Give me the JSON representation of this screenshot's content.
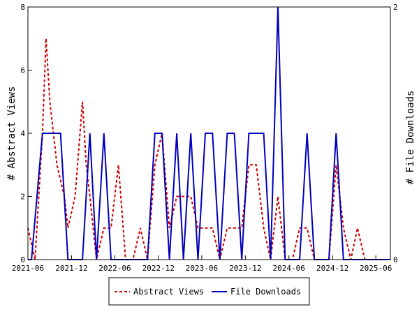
{
  "chart_data": {
    "type": "line",
    "ylabel_left": "# Abstract Views",
    "ylabel_right": "# File Downloads",
    "ylim_left": [
      0,
      8
    ],
    "ylim_right": [
      0,
      2
    ],
    "yticks_left": [
      "0",
      "2",
      "4",
      "6",
      "8"
    ],
    "yticks_right": [
      "0",
      "2"
    ],
    "x_tick_labels": [
      "2021-06",
      "2021-12",
      "2022-06",
      "2022-12",
      "2023-06",
      "2023-12",
      "2024-06",
      "2024-12",
      "2025-06"
    ],
    "x_tick_dates": [
      "2021-06",
      "2021-12",
      "2022-06",
      "2022-12",
      "2023-06",
      "2023-12",
      "2024-06",
      "2024-12",
      "2025-06"
    ],
    "x_range": [
      "2021-06",
      "2025-08"
    ],
    "grid": false,
    "legend_position": "bottom-center",
    "series": [
      {
        "name": "Abstract Views",
        "axis": "left",
        "color": "#cc0000",
        "style": "dashed",
        "points": [
          [
            "2021-06-01",
            1
          ],
          [
            "2021-07-01",
            0
          ],
          [
            "2021-08-01",
            4
          ],
          [
            "2021-08-16",
            7
          ],
          [
            "2021-09-01",
            5
          ],
          [
            "2021-10-01",
            3
          ],
          [
            "2021-11-01",
            2
          ],
          [
            "2021-11-16",
            1
          ],
          [
            "2021-12-16",
            2
          ],
          [
            "2022-01-16",
            5
          ],
          [
            "2022-02-01",
            3
          ],
          [
            "2022-02-16",
            2
          ],
          [
            "2022-03-16",
            0
          ],
          [
            "2022-04-16",
            1
          ],
          [
            "2022-05-16",
            1
          ],
          [
            "2022-06-16",
            3
          ],
          [
            "2022-07-16",
            0
          ],
          [
            "2022-08-16",
            0
          ],
          [
            "2022-09-16",
            1
          ],
          [
            "2022-10-16",
            0
          ],
          [
            "2022-11-16",
            3
          ],
          [
            "2022-12-16",
            4
          ],
          [
            "2023-01-16",
            1
          ],
          [
            "2023-02-16",
            2
          ],
          [
            "2023-03-16",
            2
          ],
          [
            "2023-04-16",
            2
          ],
          [
            "2023-05-16",
            1
          ],
          [
            "2023-06-16",
            1
          ],
          [
            "2023-07-16",
            1
          ],
          [
            "2023-08-16",
            0
          ],
          [
            "2023-09-16",
            1
          ],
          [
            "2023-10-16",
            1
          ],
          [
            "2023-11-16",
            1
          ],
          [
            "2023-12-16",
            3
          ],
          [
            "2024-01-16",
            3
          ],
          [
            "2024-02-16",
            1
          ],
          [
            "2024-03-16",
            0
          ],
          [
            "2024-04-16",
            2
          ],
          [
            "2024-05-16",
            0
          ],
          [
            "2024-06-16",
            0
          ],
          [
            "2024-07-16",
            1
          ],
          [
            "2024-08-16",
            1
          ],
          [
            "2024-09-16",
            0
          ],
          [
            "2024-10-16",
            0
          ],
          [
            "2024-11-16",
            0
          ],
          [
            "2024-12-16",
            3
          ],
          [
            "2025-01-16",
            1
          ],
          [
            "2025-02-16",
            0
          ],
          [
            "2025-03-16",
            1
          ],
          [
            "2025-04-16",
            0
          ]
        ]
      },
      {
        "name": "File Downloads",
        "axis": "right",
        "color": "#0000bb",
        "style": "solid",
        "points": [
          [
            "2021-06-01",
            0
          ],
          [
            "2021-06-16",
            0
          ],
          [
            "2021-08-01",
            1
          ],
          [
            "2021-08-16",
            1
          ],
          [
            "2021-09-16",
            1
          ],
          [
            "2021-10-16",
            1
          ],
          [
            "2021-11-16",
            0
          ],
          [
            "2021-12-16",
            0
          ],
          [
            "2022-01-16",
            0
          ],
          [
            "2022-02-16",
            1
          ],
          [
            "2022-03-16",
            0
          ],
          [
            "2022-04-16",
            1
          ],
          [
            "2022-05-16",
            0
          ],
          [
            "2022-06-16",
            0
          ],
          [
            "2022-07-16",
            0
          ],
          [
            "2022-08-16",
            0
          ],
          [
            "2022-09-16",
            0
          ],
          [
            "2022-10-16",
            0
          ],
          [
            "2022-11-16",
            1
          ],
          [
            "2022-12-16",
            1
          ],
          [
            "2023-01-16",
            0
          ],
          [
            "2023-02-16",
            1
          ],
          [
            "2023-03-16",
            0
          ],
          [
            "2023-04-16",
            1
          ],
          [
            "2023-05-16",
            0
          ],
          [
            "2023-06-16",
            1
          ],
          [
            "2023-07-16",
            1
          ],
          [
            "2023-08-16",
            0
          ],
          [
            "2023-09-16",
            1
          ],
          [
            "2023-10-16",
            1
          ],
          [
            "2023-11-16",
            0
          ],
          [
            "2023-12-16",
            1
          ],
          [
            "2024-01-16",
            1
          ],
          [
            "2024-02-16",
            1
          ],
          [
            "2024-03-16",
            0
          ],
          [
            "2024-04-16",
            2
          ],
          [
            "2024-05-16",
            0
          ],
          [
            "2024-06-16",
            0
          ],
          [
            "2024-07-16",
            0
          ],
          [
            "2024-08-16",
            1
          ],
          [
            "2024-09-16",
            0
          ],
          [
            "2024-10-16",
            0
          ],
          [
            "2024-11-16",
            0
          ],
          [
            "2024-12-16",
            1
          ],
          [
            "2025-01-16",
            0
          ],
          [
            "2025-02-16",
            0
          ],
          [
            "2025-03-16",
            0
          ],
          [
            "2025-04-16",
            0
          ],
          [
            "2025-05-16",
            0
          ],
          [
            "2025-06-16",
            0
          ],
          [
            "2025-07-16",
            0
          ],
          [
            "2025-08-01",
            0
          ]
        ]
      }
    ]
  }
}
